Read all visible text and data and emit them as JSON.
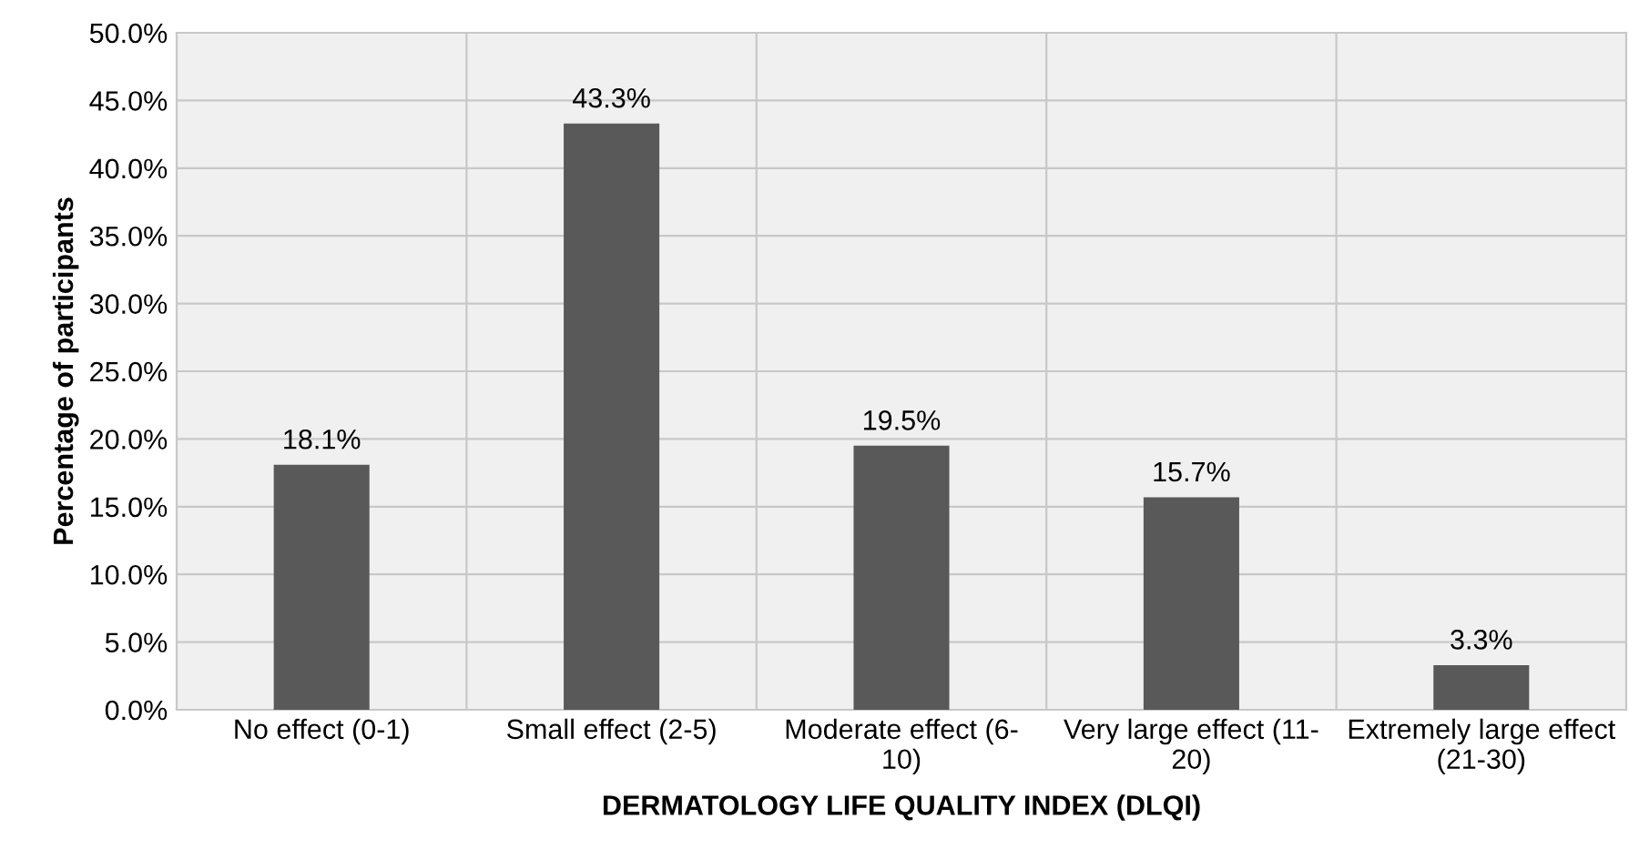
{
  "chart_data": {
    "type": "bar",
    "xlabel": "DERMATOLOGY LIFE QUALITY INDEX (DLQI)",
    "ylabel": "Percentage of participants",
    "categories": [
      "No effect (0-1)",
      "Small effect (2-5)",
      "Moderate effect (6-\n10)",
      "Very large effect (11-\n20)",
      "Extremely large effect\n(21-30)"
    ],
    "values": [
      18.1,
      43.3,
      19.5,
      15.7,
      3.3
    ],
    "value_labels": [
      "18.1%",
      "43.3%",
      "19.5%",
      "15.7%",
      "3.3%"
    ],
    "color": "#595959",
    "ylim": [
      0,
      50
    ],
    "yticks": [
      {
        "value": 0,
        "label": "0.0%"
      },
      {
        "value": 5,
        "label": "5.0%"
      },
      {
        "value": 10,
        "label": "10.0%"
      },
      {
        "value": 15,
        "label": "15.0%"
      },
      {
        "value": 20,
        "label": "20.0%"
      },
      {
        "value": 25,
        "label": "25.0%"
      },
      {
        "value": 30,
        "label": "30.0%"
      },
      {
        "value": 35,
        "label": "35.0%"
      },
      {
        "value": 40,
        "label": "40.0%"
      },
      {
        "value": 45,
        "label": "45.0%"
      },
      {
        "value": 50,
        "label": "50.0%"
      }
    ],
    "grid": true
  }
}
